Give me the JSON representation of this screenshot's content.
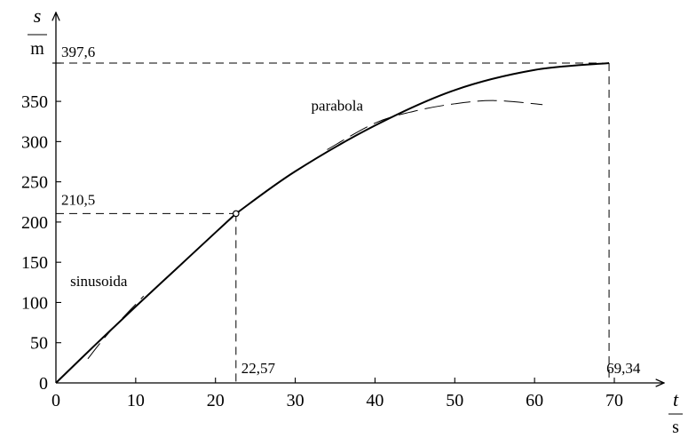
{
  "chart_data": {
    "type": "line",
    "xlim": [
      0,
      70
    ],
    "ylim": [
      0,
      397.6
    ],
    "x_ticks": [
      0,
      10,
      20,
      30,
      40,
      50,
      60,
      70
    ],
    "y_ticks": [
      0,
      50,
      100,
      150,
      200,
      250,
      300,
      350
    ],
    "x_label": {
      "symbol": "t",
      "unit": "s"
    },
    "y_label": {
      "symbol": "s",
      "unit": "m"
    },
    "grid": false,
    "series": [
      {
        "name": "sinusoida",
        "style": "solid",
        "points": [
          [
            0,
            0
          ],
          [
            5,
            48
          ],
          [
            10,
            95
          ],
          [
            15,
            141
          ],
          [
            20,
            187
          ],
          [
            22.57,
            210.5
          ]
        ]
      },
      {
        "name": "parabola",
        "style": "solid",
        "points": [
          [
            22.57,
            210.5
          ],
          [
            30,
            263
          ],
          [
            40,
            320
          ],
          [
            50,
            364
          ],
          [
            60,
            389
          ],
          [
            69.34,
            397.6
          ]
        ]
      },
      {
        "name": "sinusoida-extension",
        "style": "dashed",
        "points": [
          [
            4,
            30
          ],
          [
            6,
            55
          ],
          [
            8,
            77
          ],
          [
            11,
            108
          ]
        ]
      },
      {
        "name": "parabola-extension",
        "style": "dashed",
        "points": [
          [
            34,
            290
          ],
          [
            40,
            323
          ],
          [
            45,
            338
          ],
          [
            50,
            347
          ],
          [
            55,
            351
          ],
          [
            61,
            346
          ]
        ]
      }
    ],
    "annotations": {
      "y_top": {
        "label": "397,6",
        "value": 397.6
      },
      "x_end": {
        "label": "69,34",
        "value": 69.34
      },
      "y_mid": {
        "label": "210,5",
        "value": 210.5
      },
      "x_mid": {
        "label": "22,57",
        "value": 22.57
      },
      "curve_labels": [
        {
          "text": "parabola",
          "x": 32.0,
          "y": 345
        },
        {
          "text": "sinusoida",
          "x": 1.8,
          "y": 127
        }
      ]
    }
  }
}
